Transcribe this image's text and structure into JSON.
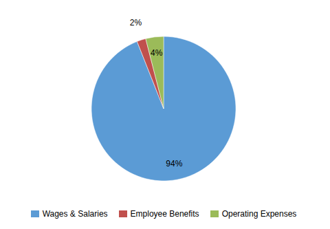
{
  "chart_data": {
    "type": "pie",
    "categories": [
      "Wages & Salaries",
      "Employee Benefits",
      "Operating Expenses"
    ],
    "values": [
      94,
      2,
      4
    ],
    "value_labels": [
      "94%",
      "2%",
      "4%"
    ],
    "colors": [
      "#5b9bd5",
      "#c0504d",
      "#9bbb59"
    ],
    "data_labels": true,
    "legend": "bottom"
  }
}
